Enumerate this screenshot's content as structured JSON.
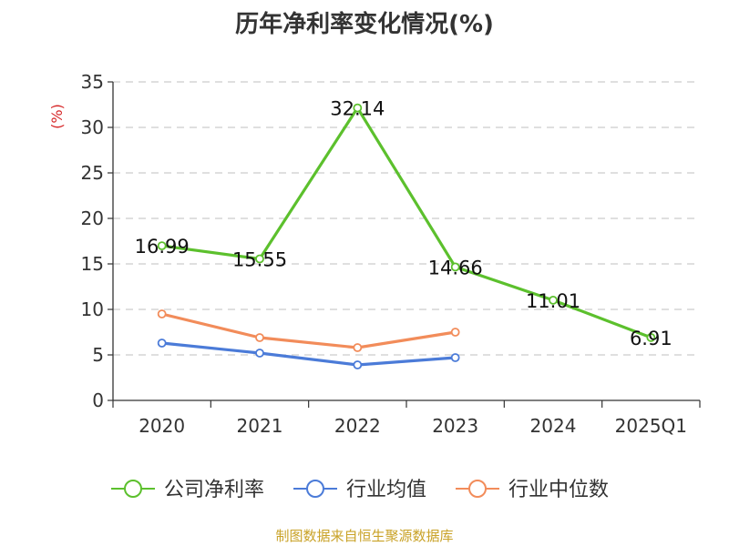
{
  "chart_data": {
    "type": "line",
    "title": "历年净利率变化情况(%)",
    "ylabel": "(%)",
    "xlabel": "",
    "categories": [
      "2020",
      "2021",
      "2022",
      "2023",
      "2024",
      "2025Q1"
    ],
    "ylim": [
      0,
      35
    ],
    "yticks": [
      0,
      5,
      10,
      15,
      20,
      25,
      30,
      35
    ],
    "grid": true,
    "legend_position": "bottom",
    "series": [
      {
        "name": "公司净利率",
        "color": "#5cc02d",
        "values": [
          16.99,
          15.55,
          32.14,
          14.66,
          11.01,
          6.91
        ],
        "labels": [
          "16.99",
          "15.55",
          "32.14",
          "14.66",
          "11.01",
          "6.91"
        ]
      },
      {
        "name": "行业均值",
        "color": "#4b7bd8",
        "values": [
          6.3,
          5.2,
          3.9,
          4.7,
          null,
          null
        ],
        "labels": []
      },
      {
        "name": "行业中位数",
        "color": "#f28c5a",
        "values": [
          9.5,
          6.9,
          5.8,
          7.5,
          null,
          null
        ],
        "labels": []
      }
    ],
    "source": "制图数据来自恒生聚源数据库"
  }
}
